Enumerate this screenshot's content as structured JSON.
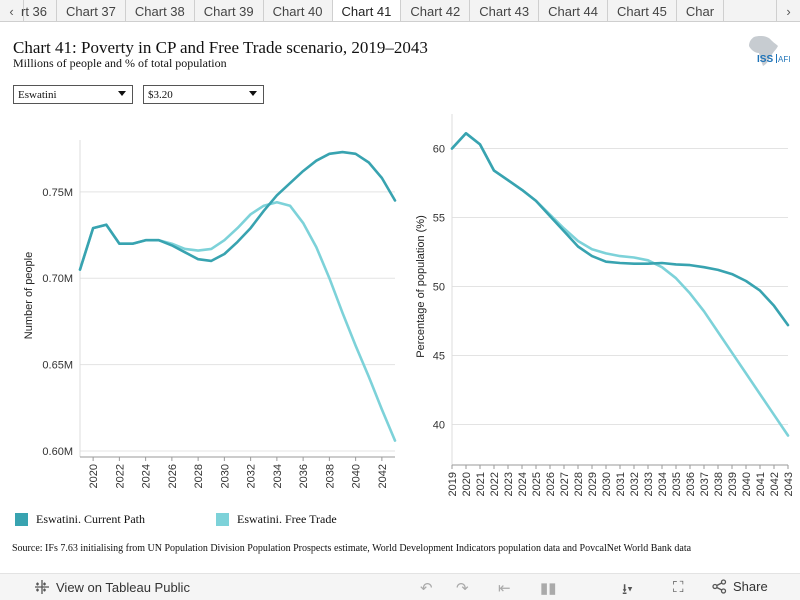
{
  "tabs": {
    "items": [
      "rt 36",
      "Chart 37",
      "Chart 38",
      "Chart 39",
      "Chart 40",
      "Chart 41",
      "Chart 42",
      "Chart 43",
      "Chart 44",
      "Chart 45",
      "Char"
    ],
    "active_index": 5
  },
  "header": {
    "title": "Chart 41: Poverty in CP and Free Trade scenario, 2019–2043",
    "subtitle": "Millions of people and % of total population",
    "logo_text": "ISS AFI"
  },
  "filters": {
    "country": "Eswatini",
    "poverty_line": "$3.20"
  },
  "colors": {
    "current_path": "#38a3b0",
    "free_trade": "#7dd2d9",
    "grid": "#e3e3e3",
    "axis": "#9a9a9a"
  },
  "chart_data": [
    {
      "type": "line",
      "title": "",
      "xlabel": "",
      "ylabel": "Number of people",
      "xlim": [
        2019,
        2043
      ],
      "ylim": [
        0.6,
        0.78
      ],
      "x_ticks": [
        2020,
        2022,
        2024,
        2026,
        2028,
        2030,
        2032,
        2034,
        2036,
        2038,
        2040,
        2042
      ],
      "y_ticks": [
        {
          "value": 0.6,
          "label": "0.60M"
        },
        {
          "value": 0.65,
          "label": "0.65M"
        },
        {
          "value": 0.7,
          "label": "0.70M"
        },
        {
          "value": 0.75,
          "label": "0.75M"
        }
      ],
      "x": [
        2019,
        2020,
        2021,
        2022,
        2023,
        2024,
        2025,
        2026,
        2027,
        2028,
        2029,
        2030,
        2031,
        2032,
        2033,
        2034,
        2035,
        2036,
        2037,
        2038,
        2039,
        2040,
        2041,
        2042,
        2043
      ],
      "series": [
        {
          "name": "Eswatini. Current Path",
          "values": [
            0.705,
            0.729,
            0.731,
            0.72,
            0.72,
            0.722,
            0.722,
            0.719,
            0.715,
            0.711,
            0.71,
            0.714,
            0.721,
            0.729,
            0.739,
            0.748,
            0.755,
            0.762,
            0.768,
            0.772,
            0.773,
            0.772,
            0.767,
            0.758,
            0.745
          ]
        },
        {
          "name": "Eswatini. Free Trade",
          "values": [
            0.705,
            0.729,
            0.731,
            0.72,
            0.72,
            0.722,
            0.722,
            0.72,
            0.717,
            0.716,
            0.717,
            0.722,
            0.729,
            0.737,
            0.742,
            0.744,
            0.742,
            0.732,
            0.718,
            0.7,
            0.68,
            0.661,
            0.643,
            0.624,
            0.606
          ]
        }
      ]
    },
    {
      "type": "line",
      "title": "",
      "xlabel": "",
      "ylabel": "Percentage of population (%)",
      "xlim": [
        2019,
        2043
      ],
      "ylim": [
        37.5,
        62.5
      ],
      "x_ticks": [
        2019,
        2020,
        2021,
        2022,
        2023,
        2024,
        2025,
        2026,
        2027,
        2028,
        2029,
        2030,
        2031,
        2032,
        2033,
        2034,
        2035,
        2036,
        2037,
        2038,
        2039,
        2040,
        2041,
        2042,
        2043
      ],
      "y_ticks": [
        {
          "value": 40,
          "label": "40"
        },
        {
          "value": 45,
          "label": "45"
        },
        {
          "value": 50,
          "label": "50"
        },
        {
          "value": 55,
          "label": "55"
        },
        {
          "value": 60,
          "label": "60"
        }
      ],
      "x": [
        2019,
        2020,
        2021,
        2022,
        2023,
        2024,
        2025,
        2026,
        2027,
        2028,
        2029,
        2030,
        2031,
        2032,
        2033,
        2034,
        2035,
        2036,
        2037,
        2038,
        2039,
        2040,
        2041,
        2042,
        2043
      ],
      "series": [
        {
          "name": "Eswatini. Current Path",
          "values": [
            60.0,
            61.1,
            60.3,
            58.4,
            57.7,
            57.0,
            56.2,
            55.1,
            54.0,
            52.9,
            52.2,
            51.8,
            51.7,
            51.65,
            51.65,
            51.7,
            51.6,
            51.55,
            51.4,
            51.2,
            50.9,
            50.4,
            49.7,
            48.6,
            47.2
          ]
        },
        {
          "name": "Eswatini. Free Trade",
          "values": [
            60.0,
            61.1,
            60.3,
            58.4,
            57.7,
            57.0,
            56.2,
            55.2,
            54.2,
            53.3,
            52.7,
            52.4,
            52.2,
            52.1,
            51.9,
            51.4,
            50.6,
            49.5,
            48.2,
            46.7,
            45.2,
            43.7,
            42.2,
            40.7,
            39.2
          ]
        }
      ]
    }
  ],
  "legend": [
    {
      "label": "Eswatini. Current Path"
    },
    {
      "label": "Eswatini. Free Trade"
    }
  ],
  "source": "Source: IFs 7.63 initialising from UN Population Division Population Prospects estimate, World Development Indicators population data and PovcalNet World Bank data",
  "footer": {
    "view_label": "View on Tableau Public",
    "share_label": "Share"
  }
}
